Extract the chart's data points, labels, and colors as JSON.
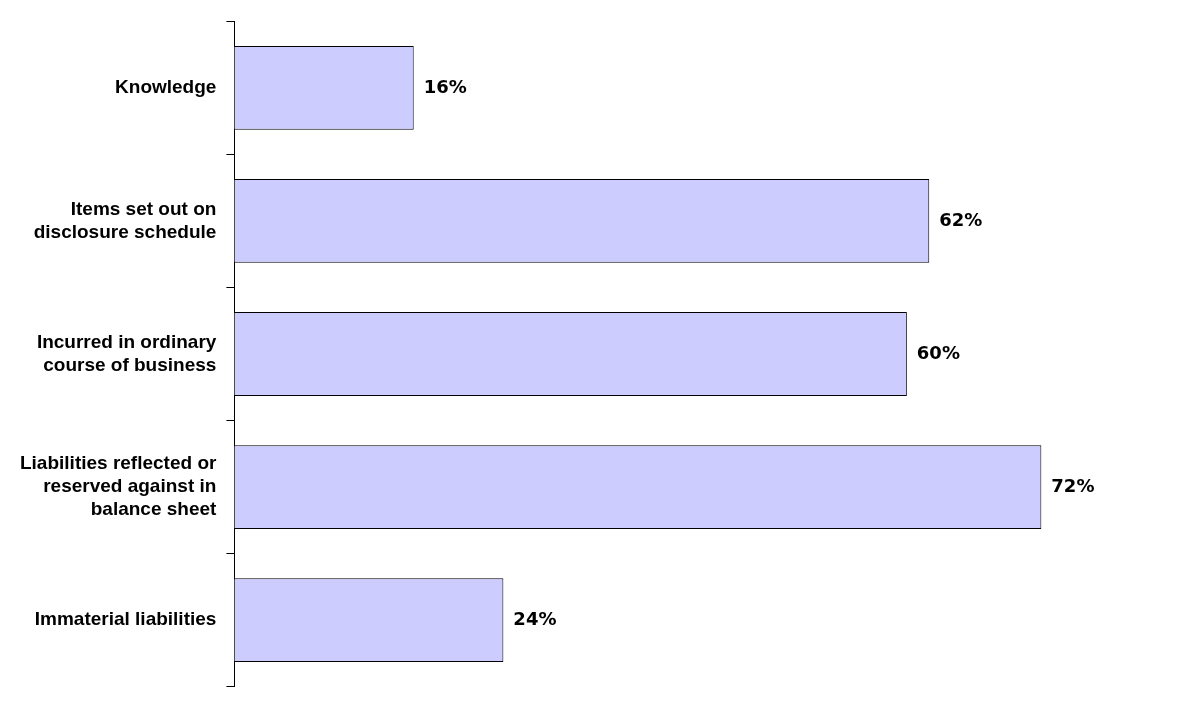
{
  "chart_data": {
    "type": "bar",
    "orientation": "horizontal",
    "categories": [
      "Knowledge",
      "Items set out on disclosure schedule",
      "Incurred in ordinary course of business",
      "Liabilities reflected or reserved against in balance sheet",
      "Immaterial liabilities"
    ],
    "values": [
      16,
      62,
      60,
      72,
      24
    ],
    "value_labels": [
      "16%",
      "62%",
      "60%",
      "72%",
      "24%"
    ],
    "color": "#ccccff",
    "grid": false,
    "legend": false
  }
}
